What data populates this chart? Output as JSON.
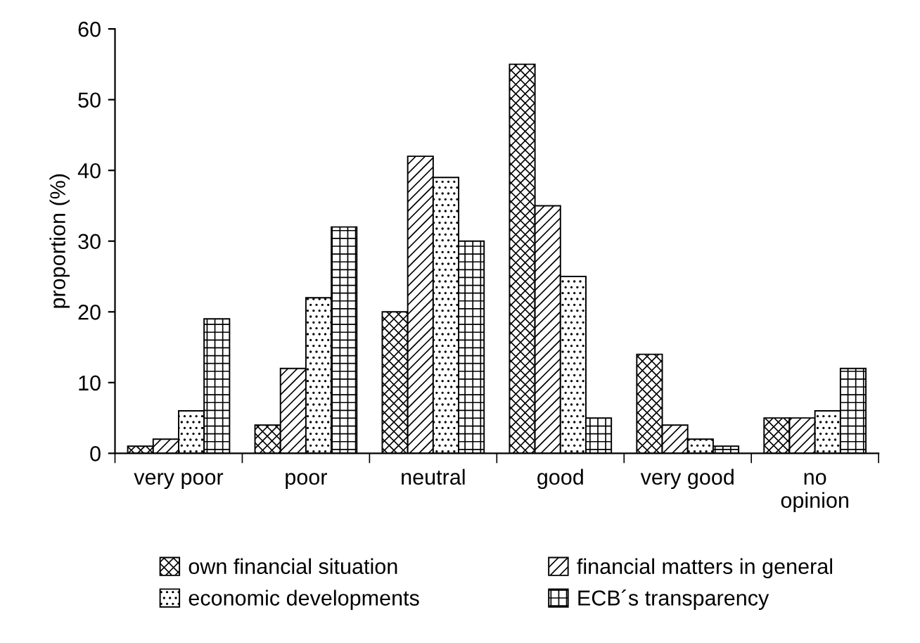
{
  "chart_data": {
    "type": "bar",
    "ylabel": "proportion (%)",
    "categories": [
      "very poor",
      "poor",
      "neutral",
      "good",
      "very good",
      "no\nopinion"
    ],
    "series": [
      {
        "name": "own financial situation",
        "color": "#000000",
        "values": [
          1,
          4,
          20,
          55,
          14,
          5
        ]
      },
      {
        "name": "financial matters in general",
        "color": "#000000",
        "values": [
          2,
          12,
          42,
          35,
          4,
          5
        ]
      },
      {
        "name": "economic developments",
        "color": "#000000",
        "values": [
          6,
          22,
          39,
          25,
          2,
          6
        ]
      },
      {
        "name": "ECB´s transparency",
        "color": "#000000",
        "values": [
          19,
          32,
          30,
          5,
          1,
          12
        ]
      }
    ],
    "ylim": [
      0,
      60
    ],
    "yticks": [
      0,
      10,
      20,
      30,
      40,
      50,
      60
    ],
    "grid": false,
    "legend": "bottom"
  }
}
